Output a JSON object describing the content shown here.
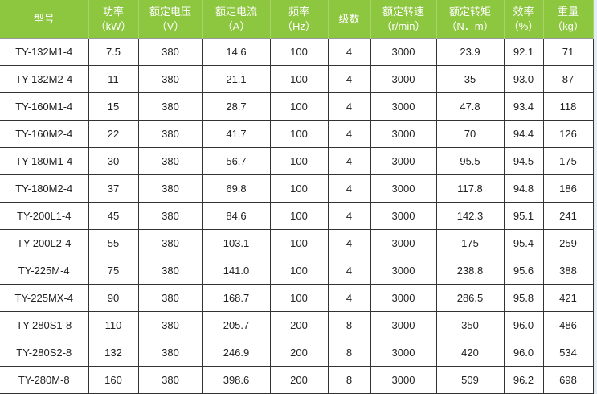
{
  "colors": {
    "header_bg": "#8dc63f",
    "header_text": "#ffffff"
  },
  "headers": [
    {
      "label": "型号",
      "unit": ""
    },
    {
      "label": "功率",
      "unit": "（kW）"
    },
    {
      "label": "额定电压",
      "unit": "（V）"
    },
    {
      "label": "额定电流",
      "unit": "（A）"
    },
    {
      "label": "频率",
      "unit": "（Hz）"
    },
    {
      "label": "级数",
      "unit": ""
    },
    {
      "label": "额定转速",
      "unit": "（r/min）"
    },
    {
      "label": "额定转矩",
      "unit": "（N．m）"
    },
    {
      "label": "效率",
      "unit": "（%）"
    },
    {
      "label": "重量",
      "unit": "（kg）"
    }
  ],
  "rows": [
    [
      "TY-132M1-4",
      "7.5",
      "380",
      "14.6",
      "100",
      "4",
      "3000",
      "23.9",
      "92.1",
      "71"
    ],
    [
      "TY-132M2-4",
      "11",
      "380",
      "21.1",
      "100",
      "4",
      "3000",
      "35",
      "93.0",
      "87"
    ],
    [
      "TY-160M1-4",
      "15",
      "380",
      "28.7",
      "100",
      "4",
      "3000",
      "47.8",
      "93.4",
      "118"
    ],
    [
      "TY-160M2-4",
      "22",
      "380",
      "41.7",
      "100",
      "4",
      "3000",
      "70",
      "94.4",
      "126"
    ],
    [
      "TY-180M1-4",
      "30",
      "380",
      "56.7",
      "100",
      "4",
      "3000",
      "95.5",
      "94.5",
      "175"
    ],
    [
      "TY-180M2-4",
      "37",
      "380",
      "69.8",
      "100",
      "4",
      "3000",
      "117.8",
      "94.8",
      "186"
    ],
    [
      "TY-200L1-4",
      "45",
      "380",
      "84.6",
      "100",
      "4",
      "3000",
      "142.3",
      "95.1",
      "241"
    ],
    [
      "TY-200L2-4",
      "55",
      "380",
      "103.1",
      "100",
      "4",
      "3000",
      "175",
      "95.4",
      "259"
    ],
    [
      "TY-225M-4",
      "75",
      "380",
      "141.0",
      "100",
      "4",
      "3000",
      "238.8",
      "95.6",
      "388"
    ],
    [
      "TY-225MX-4",
      "90",
      "380",
      "168.7",
      "100",
      "4",
      "3000",
      "286.5",
      "95.8",
      "421"
    ],
    [
      "TY-280S1-8",
      "110",
      "380",
      "205.7",
      "200",
      "8",
      "3000",
      "350",
      "96.0",
      "486"
    ],
    [
      "TY-280S2-8",
      "132",
      "380",
      "246.9",
      "200",
      "8",
      "3000",
      "420",
      "96.0",
      "534"
    ],
    [
      "TY-280M-8",
      "160",
      "380",
      "398.6",
      "200",
      "8",
      "3000",
      "509",
      "96.2",
      "698"
    ]
  ]
}
